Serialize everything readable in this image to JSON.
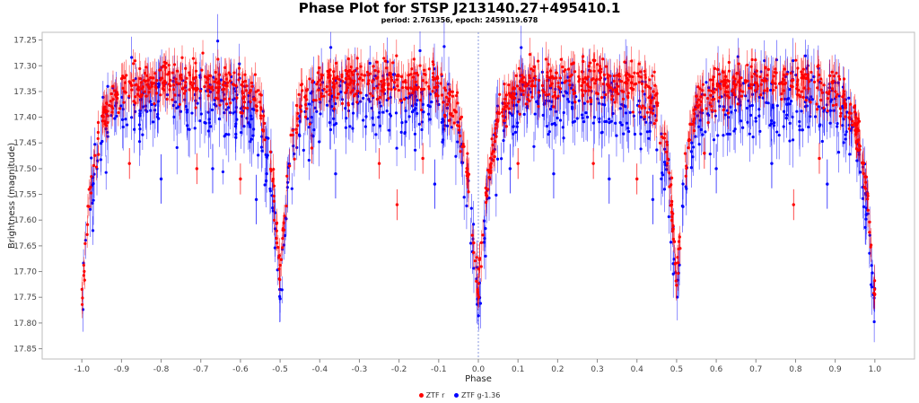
{
  "chart_data": {
    "type": "scatter",
    "title": "Phase Plot for STSP J213140.27+495410.1",
    "subtitle": "period: 2.761356, epoch: 2459119.678",
    "xlabel": "Phase",
    "ylabel": "Brightness (magnitude)",
    "xlim": [
      -1.1,
      1.1
    ],
    "ylim": [
      17.87,
      17.235
    ],
    "y_inverted": true,
    "xticks": [
      "-1.0",
      "-0.9",
      "-0.8",
      "-0.7",
      "-0.6",
      "-0.5",
      "-0.4",
      "-0.3",
      "-0.2",
      "-0.1",
      "0.0",
      "0.1",
      "0.2",
      "0.3",
      "0.4",
      "0.5",
      "0.6",
      "0.7",
      "0.8",
      "0.9",
      "1.0"
    ],
    "yticks": [
      "17.25",
      "17.30",
      "17.35",
      "17.40",
      "17.45",
      "17.50",
      "17.55",
      "17.60",
      "17.65",
      "17.70",
      "17.75",
      "17.80",
      "17.85"
    ],
    "legend_position": "bottom-center",
    "grid": false,
    "vertical_reference_line": 0.0,
    "series": [
      {
        "name": "ZTF r",
        "color": "#ff0000",
        "light_curve": {
          "phase": [
            0.0,
            0.02,
            0.05,
            0.1,
            0.2,
            0.3,
            0.4,
            0.45,
            0.48,
            0.5,
            0.52,
            0.55,
            0.6,
            0.7,
            0.8,
            0.9,
            0.95,
            0.98,
            1.0
          ],
          "magnitude": [
            17.75,
            17.55,
            17.4,
            17.34,
            17.33,
            17.33,
            17.34,
            17.37,
            17.5,
            17.72,
            17.5,
            17.37,
            17.34,
            17.33,
            17.33,
            17.34,
            17.4,
            17.55,
            17.75
          ]
        },
        "typical_error": 0.025,
        "outliers": [
          {
            "phase": -0.88,
            "mag": 17.49
          },
          {
            "phase": -0.71,
            "mag": 17.5
          },
          {
            "phase": -0.6,
            "mag": 17.52
          },
          {
            "phase": -0.42,
            "mag": 17.46
          },
          {
            "phase": -0.25,
            "mag": 17.49
          },
          {
            "phase": -0.205,
            "mag": 17.57
          },
          {
            "phase": -0.14,
            "mag": 17.48
          },
          {
            "phase": 0.1,
            "mag": 17.49
          },
          {
            "phase": 0.29,
            "mag": 17.49
          },
          {
            "phase": 0.4,
            "mag": 17.52
          },
          {
            "phase": 0.57,
            "mag": 17.47
          },
          {
            "phase": 0.795,
            "mag": 17.57
          },
          {
            "phase": 0.86,
            "mag": 17.48
          }
        ]
      },
      {
        "name": "ZTF g-1.36",
        "color": "#0000ff",
        "light_curve": {
          "phase": [
            0.0,
            0.02,
            0.05,
            0.1,
            0.2,
            0.3,
            0.4,
            0.45,
            0.48,
            0.5,
            0.52,
            0.55,
            0.6,
            0.7,
            0.8,
            0.9,
            0.95,
            0.98,
            1.0
          ],
          "magnitude": [
            17.78,
            17.58,
            17.43,
            17.38,
            17.37,
            17.37,
            17.38,
            17.41,
            17.53,
            17.76,
            17.53,
            17.41,
            17.38,
            17.37,
            17.37,
            17.38,
            17.43,
            17.58,
            17.78
          ]
        },
        "typical_error": 0.04,
        "outliers": [
          {
            "phase": -0.8,
            "mag": 17.52
          },
          {
            "phase": -0.67,
            "mag": 17.5
          },
          {
            "phase": -0.56,
            "mag": 17.56
          },
          {
            "phase": -0.36,
            "mag": 17.51
          },
          {
            "phase": -0.11,
            "mag": 17.53
          },
          {
            "phase": 0.08,
            "mag": 17.5
          },
          {
            "phase": 0.19,
            "mag": 17.51
          },
          {
            "phase": 0.33,
            "mag": 17.52
          },
          {
            "phase": 0.44,
            "mag": 17.56
          },
          {
            "phase": 0.6,
            "mag": 17.5
          },
          {
            "phase": 0.74,
            "mag": 17.49
          },
          {
            "phase": 0.88,
            "mag": 17.53
          }
        ]
      }
    ]
  }
}
